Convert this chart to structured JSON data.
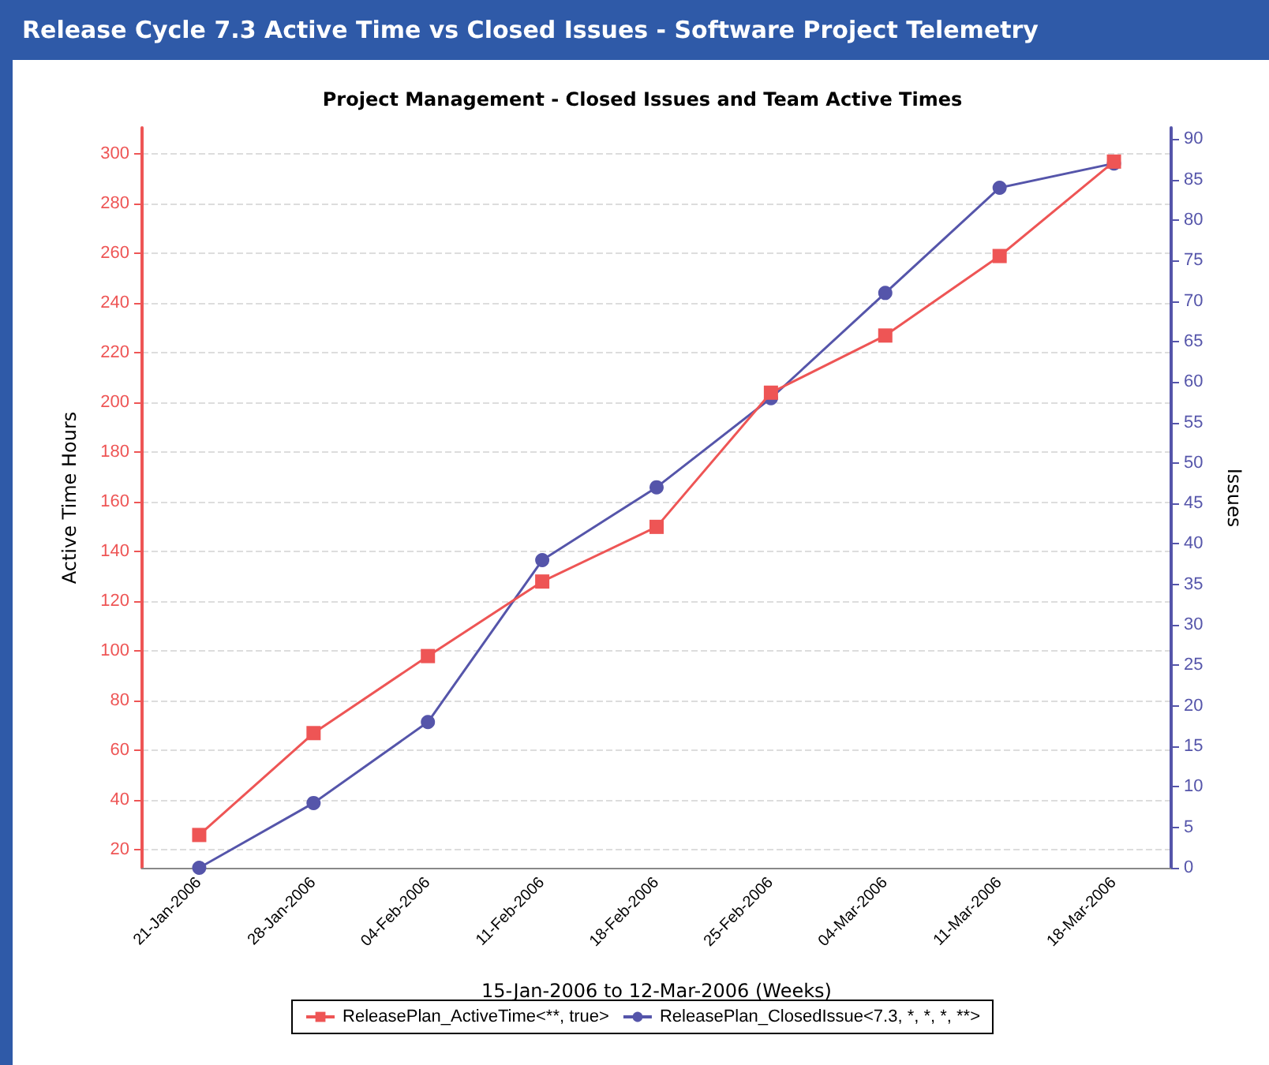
{
  "chart_data": {
    "type": "line",
    "title": "Release Cycle 7.3 Active Time vs Closed Issues - Software Project Telemetry",
    "subtitle": "Project Management - Closed Issues and Team Active Times",
    "xlabel": "15-Jan-2006 to 12-Mar-2006 (Weeks)",
    "ylabel": "Active Time Hours",
    "y2label": "Issues",
    "categories": [
      "21-Jan-2006",
      "28-Jan-2006",
      "04-Feb-2006",
      "11-Feb-2006",
      "18-Feb-2006",
      "25-Feb-2006",
      "04-Mar-2006",
      "11-Mar-2006",
      "18-Mar-2006"
    ],
    "series": [
      {
        "name": "ReleasePlan_ActiveTime<**, true>",
        "color": "#ee5555",
        "marker": "square",
        "values": [
          26,
          67,
          98,
          128,
          150,
          204,
          227,
          259,
          297
        ]
      },
      {
        "name": "ReleasePlan_ClosedIssue<7.3, *, *, *, **>",
        "color": "#5555aa",
        "marker": "circle",
        "axis": "y2",
        "values": [
          0,
          8,
          18,
          38,
          47,
          58,
          71,
          84,
          87
        ]
      }
    ],
    "ylim": [
      12.8,
      310.6
    ],
    "yticks": [
      20,
      40,
      60,
      80,
      100,
      120,
      140,
      160,
      180,
      200,
      220,
      240,
      260,
      280,
      300
    ],
    "y2lim": [
      0,
      91.4
    ],
    "y2ticks": [
      0,
      5,
      10,
      15,
      20,
      25,
      30,
      35,
      40,
      45,
      50,
      55,
      60,
      65,
      70,
      75,
      80,
      85,
      90
    ],
    "grid": "y",
    "legend": "bottom",
    "line_style": "solid"
  }
}
